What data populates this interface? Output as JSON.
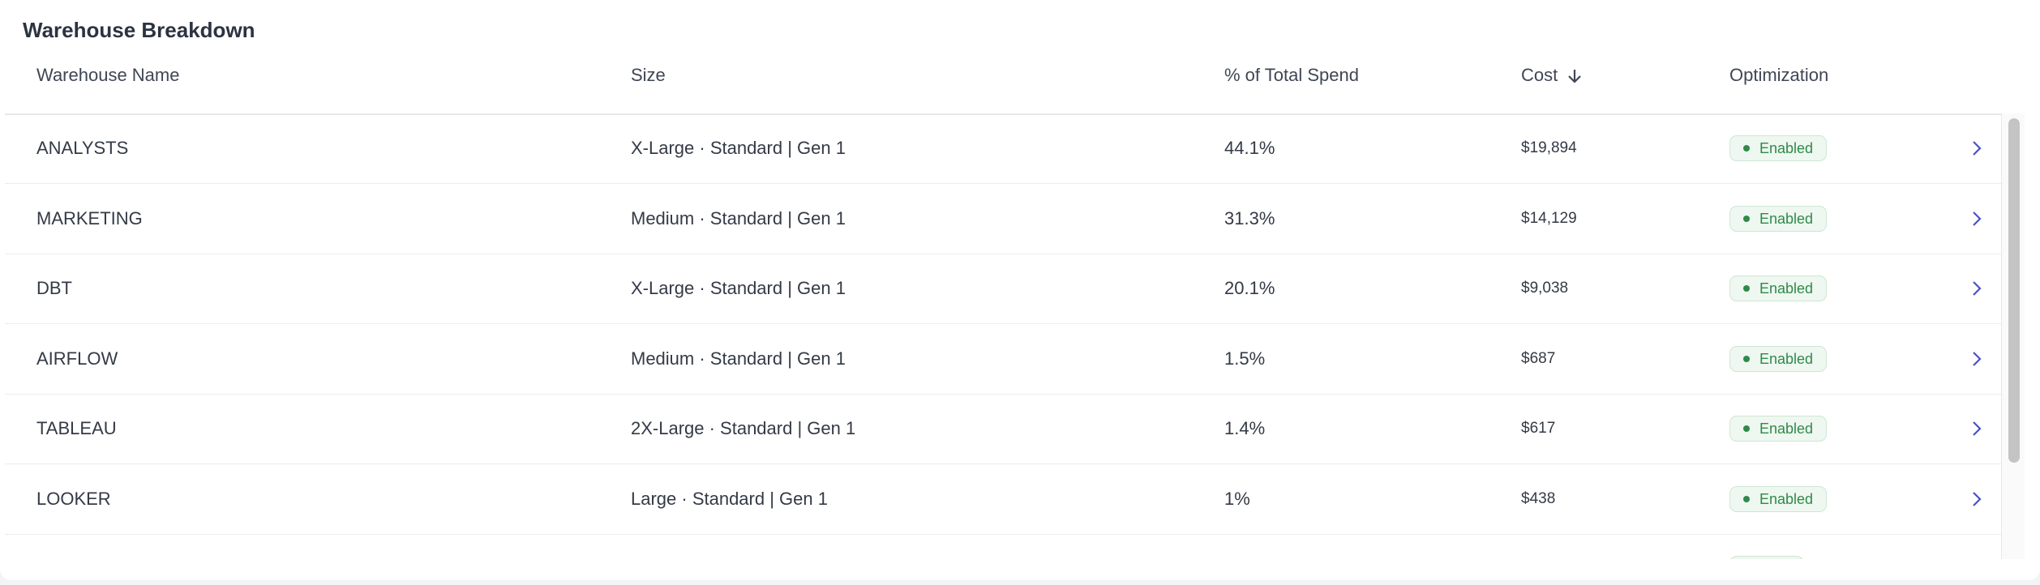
{
  "header": {
    "title": "Warehouse Breakdown"
  },
  "table": {
    "columns": [
      "Warehouse Name",
      "Size",
      "% of Total Spend",
      "Cost",
      "Optimization"
    ],
    "rows": [
      [
        "ANALYSTS",
        "X-Large · Standard | Gen 1",
        "44.1%",
        "$19,894",
        "Enabled"
      ],
      [
        "MARKETING",
        "Medium · Standard | Gen 1",
        "31.3%",
        "$14,129",
        "Enabled"
      ],
      [
        "DBT",
        "X-Large · Standard | Gen 1",
        "20.1%",
        "$9,038",
        "Enabled"
      ],
      [
        "AIRFLOW",
        "Medium · Standard | Gen 1",
        "1.5%",
        "$687",
        "Enabled"
      ],
      [
        "TABLEAU",
        "2X-Large · Standard | Gen 1",
        "1.4%",
        "$617",
        "Enabled"
      ],
      [
        "LOOKER",
        "Large · Standard | Gen 1",
        "1%",
        "$438",
        "Enabled"
      ]
    ]
  }
}
